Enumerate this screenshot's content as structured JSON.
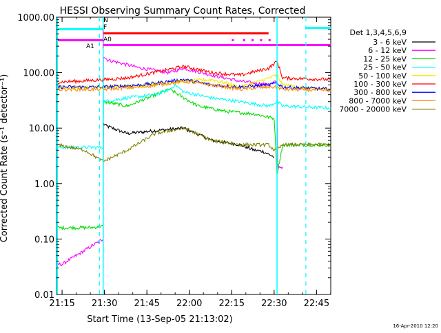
{
  "chart_data": {
    "type": "line",
    "title": "HESSI Observing Summary Count Rates, Corrected",
    "xlabel": "Start Time (13-Sep-05 21:13:02)",
    "ylabel": "Corrected Count Rate (s⁻¹ detector⁻¹)",
    "y_scale": "log",
    "ylim": [
      0.01,
      1000
    ],
    "xlim_minutes_after_21:13:02": [
      0,
      97
    ],
    "x_ticks": [
      "21:15",
      "21:30",
      "21:45",
      "22:00",
      "22:15",
      "22:30",
      "22:45"
    ],
    "y_ticks": [
      "0.01",
      "0.10",
      "1.00",
      "10.00",
      "100.00",
      "1000.00"
    ],
    "grid": false,
    "legend_title": "Det 1,3,4,5,6,9",
    "legend_position": "right",
    "timestamp": "16-Apr-2010 12:20",
    "series": [
      {
        "name": "3 - 6 keV",
        "color": "#000000",
        "x": [
          16.5,
          16.6,
          17.5,
          25,
          35,
          45,
          55,
          65,
          70,
          73,
          77
        ],
        "y": [
          0.03,
          12,
          11,
          8,
          9,
          10,
          6,
          5,
          4,
          3.8,
          3
        ]
      },
      {
        "name": "6 - 12 keV",
        "color": "#ff00ff",
        "x": [
          0,
          2,
          16.5,
          16.6,
          18,
          30,
          40,
          45,
          55,
          65,
          75,
          78,
          78.2,
          80
        ],
        "y": [
          0.035,
          0.035,
          0.1,
          200,
          170,
          120,
          100,
          120,
          90,
          70,
          60,
          70,
          2,
          2
        ]
      },
      {
        "name": "12 - 25 keV",
        "color": "#00dd00",
        "x": [
          0,
          12,
          16.5,
          16.6,
          25,
          40,
          50,
          60,
          70,
          77,
          78,
          80,
          97
        ],
        "y": [
          0.16,
          0.16,
          0.17,
          30,
          25,
          50,
          25,
          20,
          18,
          15,
          1.5,
          5,
          5
        ]
      },
      {
        "name": "25 - 50 keV",
        "color": "#00ffff",
        "x": [
          0,
          16.5,
          16.6,
          25,
          35,
          40,
          42,
          45,
          55,
          65,
          75,
          78,
          80,
          97
        ],
        "y": [
          4.5,
          4.5,
          30,
          35,
          40,
          50,
          60,
          45,
          35,
          30,
          25,
          30,
          25,
          23
        ]
      },
      {
        "name": "50 - 100 keV",
        "color": "#eeee00",
        "x": [
          0,
          16.5,
          30,
          45,
          55,
          65,
          75,
          78,
          80,
          97
        ],
        "y": [
          55,
          55,
          60,
          70,
          75,
          55,
          80,
          90,
          60,
          48
        ]
      },
      {
        "name": "100 - 300 keV",
        "color": "#ff0000",
        "x": [
          0,
          8,
          16.5,
          25,
          45,
          55,
          65,
          75,
          78,
          80,
          97
        ],
        "y": [
          68,
          70,
          75,
          80,
          130,
          100,
          90,
          120,
          160,
          80,
          75
        ]
      },
      {
        "name": "300 - 800 keV",
        "color": "#0000ff",
        "x": [
          0,
          16.5,
          30,
          45,
          55,
          65,
          75,
          78,
          80,
          97
        ],
        "y": [
          55,
          55,
          60,
          75,
          60,
          55,
          60,
          65,
          55,
          50
        ]
      },
      {
        "name": "800 - 7000 keV",
        "color": "#ff8c00",
        "x": [
          0,
          16.5,
          30,
          45,
          55,
          65,
          75,
          78,
          80,
          97
        ],
        "y": [
          50,
          50,
          55,
          70,
          60,
          50,
          55,
          55,
          50,
          48
        ]
      },
      {
        "name": "7000 - 20000 keV",
        "color": "#808000",
        "x": [
          0,
          10,
          16.5,
          25,
          35,
          45,
          55,
          65,
          75,
          77,
          78,
          80,
          97
        ],
        "y": [
          5,
          4,
          2.5,
          4,
          8,
          10,
          6,
          5,
          5,
          4,
          4,
          5,
          5
        ]
      }
    ],
    "annotations": {
      "N_label": "N",
      "F_label": "F",
      "A0_label": "A0",
      "A1_label": "A1"
    }
  }
}
